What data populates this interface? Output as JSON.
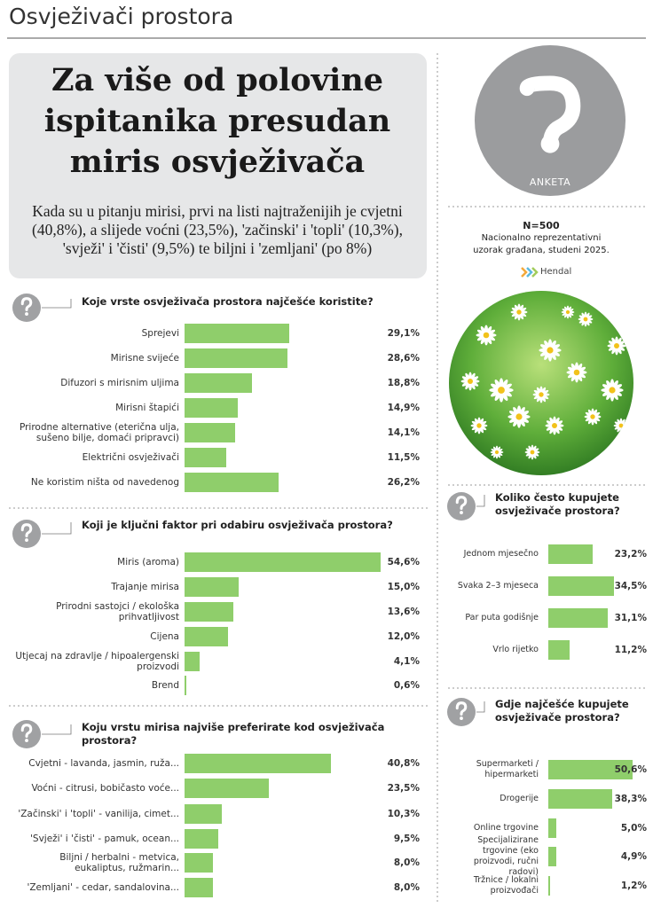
{
  "header": {
    "title": "Osvježivači prostora"
  },
  "lead": {
    "title": "Za više od polovine ispitanika presudan miris osvježivača",
    "text": "Kada su u pitanju mirisi, prvi na listi najtraženijih je cvjetni (40,8%), a slijede voćni (23,5%), 'začinski' i 'topli' (10,3%), 'svježi' i 'čisti' (9,5%) te biljni i 'zemljani' (po 8%)"
  },
  "survey": {
    "badge": "ANKETA",
    "sample": "N=500",
    "description": [
      "Nacionalno reprezentativni",
      "uzorak građana, studeni 2025."
    ],
    "source": "Hendal"
  },
  "chart_data": [
    {
      "type": "bar",
      "orientation": "horizontal",
      "color": "#8fce6b",
      "title": "Koje vrste osvježivača prostora najčešće koristite?",
      "categories": [
        "Sprejevi",
        "Mirisne svijeće",
        "Difuzori s mirisnim uljima",
        "Mirisni štapići",
        "Prirodne alternative (eterična ulja, sušeno bilje, domaći pripravci)",
        "Električni osvježivači",
        "Ne koristim ništa od navedenog"
      ],
      "values": [
        29.1,
        28.6,
        18.8,
        14.9,
        14.1,
        11.5,
        26.2
      ],
      "value_labels": [
        "29,1%",
        "28,6%",
        "18,8%",
        "14,9%",
        "14,1%",
        "11,5%",
        "26,2%"
      ]
    },
    {
      "type": "bar",
      "orientation": "horizontal",
      "color": "#8fce6b",
      "title": "Koji je ključni faktor pri odabiru osvježivača prostora?",
      "categories": [
        "Miris (aroma)",
        "Trajanje mirisa",
        "Prirodni sastojci / ekološka prihvatljivost",
        "Cijena",
        "Utjecaj na zdravlje / hipoalergenski proizvodi",
        "Brend"
      ],
      "values": [
        54.6,
        15.0,
        13.6,
        12.0,
        4.1,
        0.6
      ],
      "value_labels": [
        "54,6%",
        "15,0%",
        "13,6%",
        "12,0%",
        "4,1%",
        "0,6%"
      ]
    },
    {
      "type": "bar",
      "orientation": "horizontal",
      "color": "#8fce6b",
      "title": "Koju vrstu mirisa najviše preferirate kod osvježivača prostora?",
      "categories": [
        "Cvjetni - lavanda, jasmin, ruža...",
        "Voćni - citrusi, bobičasto voće...",
        "'Začinski' i 'topli' - vanilija, cimet...",
        "'Svježi' i 'čisti' - pamuk, ocean...",
        "Biljni / herbalni - metvica, eukaliptus, ružmarin...",
        "'Zemljani' - cedar, sandalovina..."
      ],
      "values": [
        40.8,
        23.5,
        10.3,
        9.5,
        8.0,
        8.0
      ],
      "value_labels": [
        "40,8%",
        "23,5%",
        "10,3%",
        "9,5%",
        "8,0%",
        "8,0%"
      ]
    },
    {
      "type": "bar",
      "orientation": "horizontal",
      "color": "#8fce6b",
      "title": "Koliko često kupujete osvježivače prostora?",
      "categories": [
        "Jednom mjesečno",
        "Svaka 2–3 mjeseca",
        "Par puta godišnje",
        "Vrlo rijetko"
      ],
      "values": [
        23.2,
        34.5,
        31.1,
        11.2
      ],
      "value_labels": [
        "23,2%",
        "34,5%",
        "31,1%",
        "11,2%"
      ]
    },
    {
      "type": "bar",
      "orientation": "horizontal",
      "color": "#8fce6b",
      "title": "Gdje najčešće kupujete osvježivače prostora?",
      "categories": [
        "Supermarketi / hipermarketi",
        "Drogerije",
        "Online trgovine",
        "Specijalizirane trgovine (eko proizvodi, ručni radovi)",
        "Tržnice / lokalni proizvođači"
      ],
      "values": [
        50.6,
        38.3,
        5.0,
        4.9,
        1.2
      ],
      "value_labels": [
        "50,6%",
        "38,3%",
        "5,0%",
        "4,9%",
        "1,2%"
      ]
    }
  ]
}
